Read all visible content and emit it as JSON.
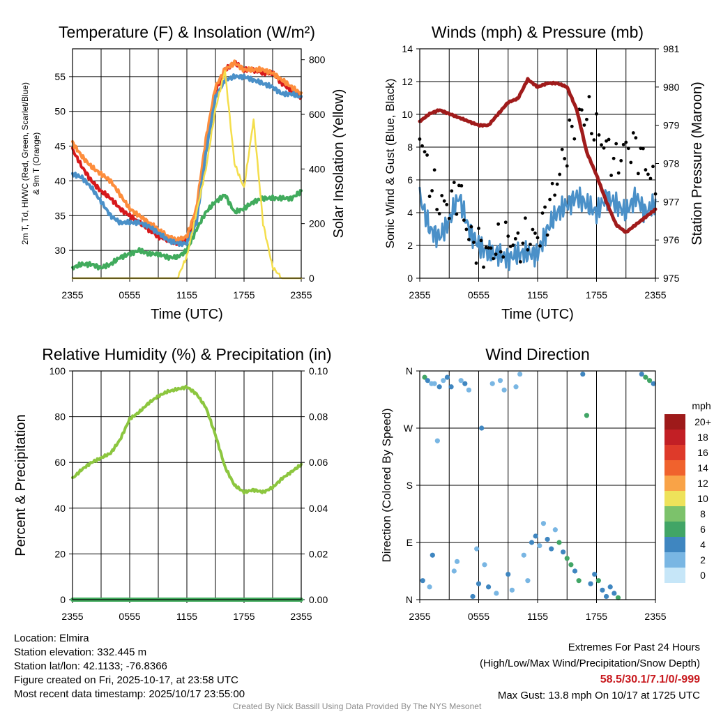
{
  "chart_data": [
    {
      "type": "line",
      "title": "Temperature (F) & Insolation (W/m²)",
      "xlabel": "Time (UTC)",
      "ylabel": "2m T, Td, HI/WC (Red, Green, Scarlet/Blue) & 9m T (Orange)",
      "y2label": "Solar Insolation (Yellow)",
      "x_ticks": [
        "2355",
        "0555",
        "1155",
        "1755",
        "2355"
      ],
      "ylim": [
        26,
        59
      ],
      "y_ticks": [
        30,
        35,
        40,
        45,
        50,
        55
      ],
      "y2lim": [
        0,
        840
      ],
      "y2_ticks": [
        0,
        200,
        400,
        600,
        800
      ],
      "x_hours": [
        0,
        1,
        2,
        3,
        4,
        5,
        6,
        7,
        8,
        9,
        10,
        11,
        12,
        13,
        14,
        15,
        16,
        17,
        18,
        19,
        20,
        21,
        22,
        23,
        24
      ],
      "series": [
        {
          "name": "2m T",
          "color": "#d7191c",
          "values": [
            44.5,
            42,
            40,
            38.5,
            37.5,
            36,
            35,
            34,
            33,
            32,
            31.5,
            31,
            31.5,
            35,
            45,
            53,
            56,
            57,
            56,
            56,
            55.5,
            55.5,
            54,
            53,
            52
          ]
        },
        {
          "name": "9m T",
          "color": "#fd8d3c",
          "values": [
            45.5,
            43.5,
            42,
            41,
            40,
            38,
            36,
            35,
            34,
            33,
            32,
            31.5,
            32,
            36,
            46,
            53.5,
            56,
            57,
            56,
            56,
            56,
            55.5,
            54.5,
            53.5,
            52.5
          ]
        },
        {
          "name": "Td",
          "color": "#41ab5d",
          "values": [
            27.5,
            28,
            28,
            27.5,
            28,
            29,
            29.5,
            30,
            29.5,
            29.5,
            29,
            29,
            30,
            33,
            35.5,
            37,
            38,
            35.5,
            36,
            37,
            37.5,
            37.5,
            37.5,
            37.5,
            38.5
          ]
        },
        {
          "name": "HI/WC",
          "color": "#4a90c8",
          "values": [
            41,
            40.5,
            39,
            37,
            35,
            34,
            34,
            34,
            33.5,
            32.5,
            31.5,
            31,
            31,
            34,
            44,
            52,
            54.5,
            55,
            55,
            54.5,
            54,
            53.5,
            52.5,
            52.5,
            52
          ]
        },
        {
          "name": "Solar Insolation",
          "axis": "y2",
          "color": "#f4de4c",
          "values": [
            0,
            0,
            0,
            0,
            0,
            0,
            0,
            0,
            0,
            0,
            0,
            0,
            80,
            240,
            400,
            620,
            760,
            420,
            330,
            580,
            200,
            40,
            0,
            0,
            0
          ]
        }
      ]
    },
    {
      "type": "line",
      "title": "Winds (mph) & Pressure (mb)",
      "xlabel": "Time (UTC)",
      "ylabel": "Sonic Wind & Gust (Blue, Black)",
      "y2label": "Station Pressure (Maroon)",
      "x_ticks": [
        "2355",
        "0555",
        "1155",
        "1755",
        "2355"
      ],
      "ylim": [
        0,
        14
      ],
      "y_ticks": [
        0,
        2,
        4,
        6,
        8,
        10,
        12,
        14
      ],
      "y2lim": [
        975,
        981
      ],
      "y2_ticks": [
        975,
        976,
        977,
        978,
        979,
        980,
        981
      ],
      "x_hours": [
        0,
        1,
        2,
        3,
        4,
        5,
        6,
        7,
        8,
        9,
        10,
        11,
        12,
        13,
        14,
        15,
        16,
        17,
        18,
        19,
        20,
        21,
        22,
        23,
        24
      ],
      "series": [
        {
          "name": "Sonic Wind",
          "color": "#4a90c8",
          "values": [
            5,
            3,
            2.5,
            3.5,
            5,
            3,
            2,
            1.5,
            1.5,
            1.2,
            1.5,
            1.5,
            1.5,
            3,
            4,
            4.5,
            5,
            4.5,
            4,
            5,
            4.5,
            4,
            5,
            4,
            4.5
          ]
        },
        {
          "name": "Gust",
          "color": "#000000",
          "style": "points",
          "values": [
            9,
            6,
            4.5,
            4.5,
            5.5,
            2.5,
            2,
            1.5,
            2,
            2.5,
            2,
            2.5,
            2.5,
            4,
            6,
            8,
            10,
            10,
            9,
            8,
            7,
            8,
            8,
            7,
            5.5
          ]
        },
        {
          "name": "Station Pressure",
          "axis": "y2",
          "color": "#a01b1b",
          "values": [
            979.1,
            979.3,
            979.4,
            979.3,
            979.2,
            979.1,
            979.0,
            979.0,
            979.3,
            979.6,
            979.7,
            980.2,
            980.0,
            980.1,
            980.1,
            980.0,
            979.4,
            978.3,
            977.7,
            977.0,
            976.4,
            976.2,
            976.4,
            976.6,
            976.8
          ]
        }
      ]
    },
    {
      "type": "line",
      "title": "Relative Humidity (%) & Precipitation (in)",
      "xlabel": "",
      "ylabel": "Percent & Precipitation",
      "x_ticks": [
        "2355",
        "0555",
        "1155",
        "1755",
        "2355"
      ],
      "ylim": [
        0,
        100
      ],
      "y_ticks": [
        0,
        20,
        40,
        60,
        80,
        100
      ],
      "y2lim": [
        0,
        0.1
      ],
      "y2_ticks": [
        "0.00",
        "0.02",
        "0.04",
        "0.06",
        "0.08",
        "0.10"
      ],
      "x_hours": [
        0,
        1,
        2,
        3,
        4,
        5,
        6,
        7,
        8,
        9,
        10,
        11,
        12,
        13,
        14,
        15,
        16,
        17,
        18,
        19,
        20,
        21,
        22,
        23,
        24
      ],
      "series": [
        {
          "name": "Relative Humidity",
          "color": "#8cc63f",
          "values": [
            53,
            57,
            60,
            62,
            64,
            70,
            79,
            82,
            86,
            89,
            91,
            92,
            93,
            90,
            84,
            72,
            58,
            50,
            47,
            48,
            47,
            49,
            53,
            56,
            59
          ]
        },
        {
          "name": "Precipitation",
          "axis": "y2",
          "color": "#41ab5d",
          "values": [
            0,
            0,
            0,
            0,
            0,
            0,
            0,
            0,
            0,
            0,
            0,
            0,
            0,
            0,
            0,
            0,
            0,
            0,
            0,
            0,
            0,
            0,
            0,
            0,
            0
          ]
        }
      ]
    },
    {
      "type": "scatter",
      "title": "Wind Direction",
      "xlabel": "",
      "ylabel": "Direction (Colored By Speed)",
      "x_ticks": [
        "2355",
        "0555",
        "1155",
        "1755",
        "2355"
      ],
      "y_ticks": [
        "N",
        "E",
        "S",
        "W",
        "N"
      ],
      "ylim": [
        0,
        360
      ],
      "colorbar_title": "mph",
      "colorbar_labels": [
        "20+",
        "18",
        "16",
        "14",
        "12",
        "10",
        "8",
        "6",
        "4",
        "2",
        "0"
      ],
      "colorbar_colors": [
        "#9e1a1a",
        "#c21f25",
        "#de3a2a",
        "#f0622d",
        "#f9a347",
        "#eee25a",
        "#7cc26b",
        "#41a566",
        "#3f86c0",
        "#79b6e3",
        "#c6e6f8"
      ],
      "points": [
        {
          "hour": 0.3,
          "dir": 30,
          "speed": 4
        },
        {
          "hour": 0.5,
          "dir": 350,
          "speed": 6
        },
        {
          "hour": 0.8,
          "dir": 345,
          "speed": 3
        },
        {
          "hour": 1.0,
          "dir": 20,
          "speed": 2
        },
        {
          "hour": 1.2,
          "dir": 340,
          "speed": 2
        },
        {
          "hour": 1.3,
          "dir": 70,
          "speed": 3
        },
        {
          "hour": 1.5,
          "dir": 340,
          "speed": 2
        },
        {
          "hour": 1.8,
          "dir": 250,
          "speed": 1
        },
        {
          "hour": 2.0,
          "dir": 335,
          "speed": 4
        },
        {
          "hour": 2.4,
          "dir": 345,
          "speed": 2
        },
        {
          "hour": 2.8,
          "dir": 350,
          "speed": 3
        },
        {
          "hour": 3.2,
          "dir": 335,
          "speed": 3
        },
        {
          "hour": 3.5,
          "dir": 45,
          "speed": 2
        },
        {
          "hour": 3.8,
          "dir": 60,
          "speed": 1
        },
        {
          "hour": 4.2,
          "dir": 345,
          "speed": 2
        },
        {
          "hour": 4.6,
          "dir": 340,
          "speed": 3
        },
        {
          "hour": 5.0,
          "dir": 330,
          "speed": 1
        },
        {
          "hour": 5.4,
          "dir": 5,
          "speed": 3
        },
        {
          "hour": 5.8,
          "dir": 80,
          "speed": 2
        },
        {
          "hour": 6.0,
          "dir": 25,
          "speed": 3
        },
        {
          "hour": 6.3,
          "dir": 270,
          "speed": 3
        },
        {
          "hour": 6.6,
          "dir": 55,
          "speed": 2
        },
        {
          "hour": 7.0,
          "dir": 20,
          "speed": 4
        },
        {
          "hour": 7.4,
          "dir": 340,
          "speed": 2
        },
        {
          "hour": 7.8,
          "dir": 10,
          "speed": 1
        },
        {
          "hour": 8.2,
          "dir": 345,
          "speed": 1
        },
        {
          "hour": 8.6,
          "dir": 330,
          "speed": 2
        },
        {
          "hour": 9.0,
          "dir": 40,
          "speed": 3
        },
        {
          "hour": 9.4,
          "dir": 15,
          "speed": 2
        },
        {
          "hour": 9.8,
          "dir": 335,
          "speed": 1
        },
        {
          "hour": 10.2,
          "dir": 355,
          "speed": 1
        },
        {
          "hour": 10.6,
          "dir": 70,
          "speed": 1
        },
        {
          "hour": 11.0,
          "dir": 30,
          "speed": 2
        },
        {
          "hour": 11.4,
          "dir": 90,
          "speed": 3
        },
        {
          "hour": 11.8,
          "dir": 100,
          "speed": 4
        },
        {
          "hour": 12.2,
          "dir": 85,
          "speed": 2
        },
        {
          "hour": 12.6,
          "dir": 120,
          "speed": 1
        },
        {
          "hour": 13.0,
          "dir": 95,
          "speed": 4
        },
        {
          "hour": 13.4,
          "dir": 80,
          "speed": 4
        },
        {
          "hour": 13.8,
          "dir": 110,
          "speed": 2
        },
        {
          "hour": 14.2,
          "dir": 90,
          "speed": 5
        },
        {
          "hour": 14.6,
          "dir": 75,
          "speed": 4
        },
        {
          "hour": 15.0,
          "dir": 65,
          "speed": 5
        },
        {
          "hour": 15.4,
          "dir": 55,
          "speed": 6
        },
        {
          "hour": 15.8,
          "dir": 45,
          "speed": 4
        },
        {
          "hour": 16.2,
          "dir": 30,
          "speed": 6
        },
        {
          "hour": 16.6,
          "dir": 355,
          "speed": 4
        },
        {
          "hour": 17.0,
          "dir": 290,
          "speed": 6
        },
        {
          "hour": 17.4,
          "dir": 25,
          "speed": 3
        },
        {
          "hour": 17.8,
          "dir": 40,
          "speed": 4
        },
        {
          "hour": 18.2,
          "dir": 30,
          "speed": 6
        },
        {
          "hour": 18.6,
          "dir": 15,
          "speed": 4
        },
        {
          "hour": 19.0,
          "dir": 5,
          "speed": 4
        },
        {
          "hour": 19.4,
          "dir": 20,
          "speed": 3
        },
        {
          "hour": 19.8,
          "dir": 10,
          "speed": 4
        },
        {
          "hour": 20.2,
          "dir": 3,
          "speed": 6
        },
        {
          "hour": 22.6,
          "dir": 355,
          "speed": 4
        },
        {
          "hour": 23.0,
          "dir": 350,
          "speed": 5
        },
        {
          "hour": 23.4,
          "dir": 345,
          "speed": 6
        },
        {
          "hour": 23.8,
          "dir": 340,
          "speed": 3
        }
      ]
    }
  ],
  "station": {
    "location": "Location: Elmira",
    "elevation": "Station elevation: 332.445 m",
    "latlon": "Station lat/lon: 42.1133; -76.8366",
    "created": "Figure created on Fri, 2025-10-17, at 23:58 UTC",
    "recent": "Most recent data timestamp: 2025/10/17 23:55:00"
  },
  "extremes": {
    "heading": "Extremes For Past 24 Hours",
    "subheading": "(High/Low/Max Wind/Precipitation/Snow Depth)",
    "values": "58.5/30.1/7.1/0/-999",
    "max_gust": "Max Gust: 13.8 mph On 10/17 at 1725 UTC"
  },
  "credit": "Created By Nick Bassill Using Data Provided By The NYS Mesonet"
}
